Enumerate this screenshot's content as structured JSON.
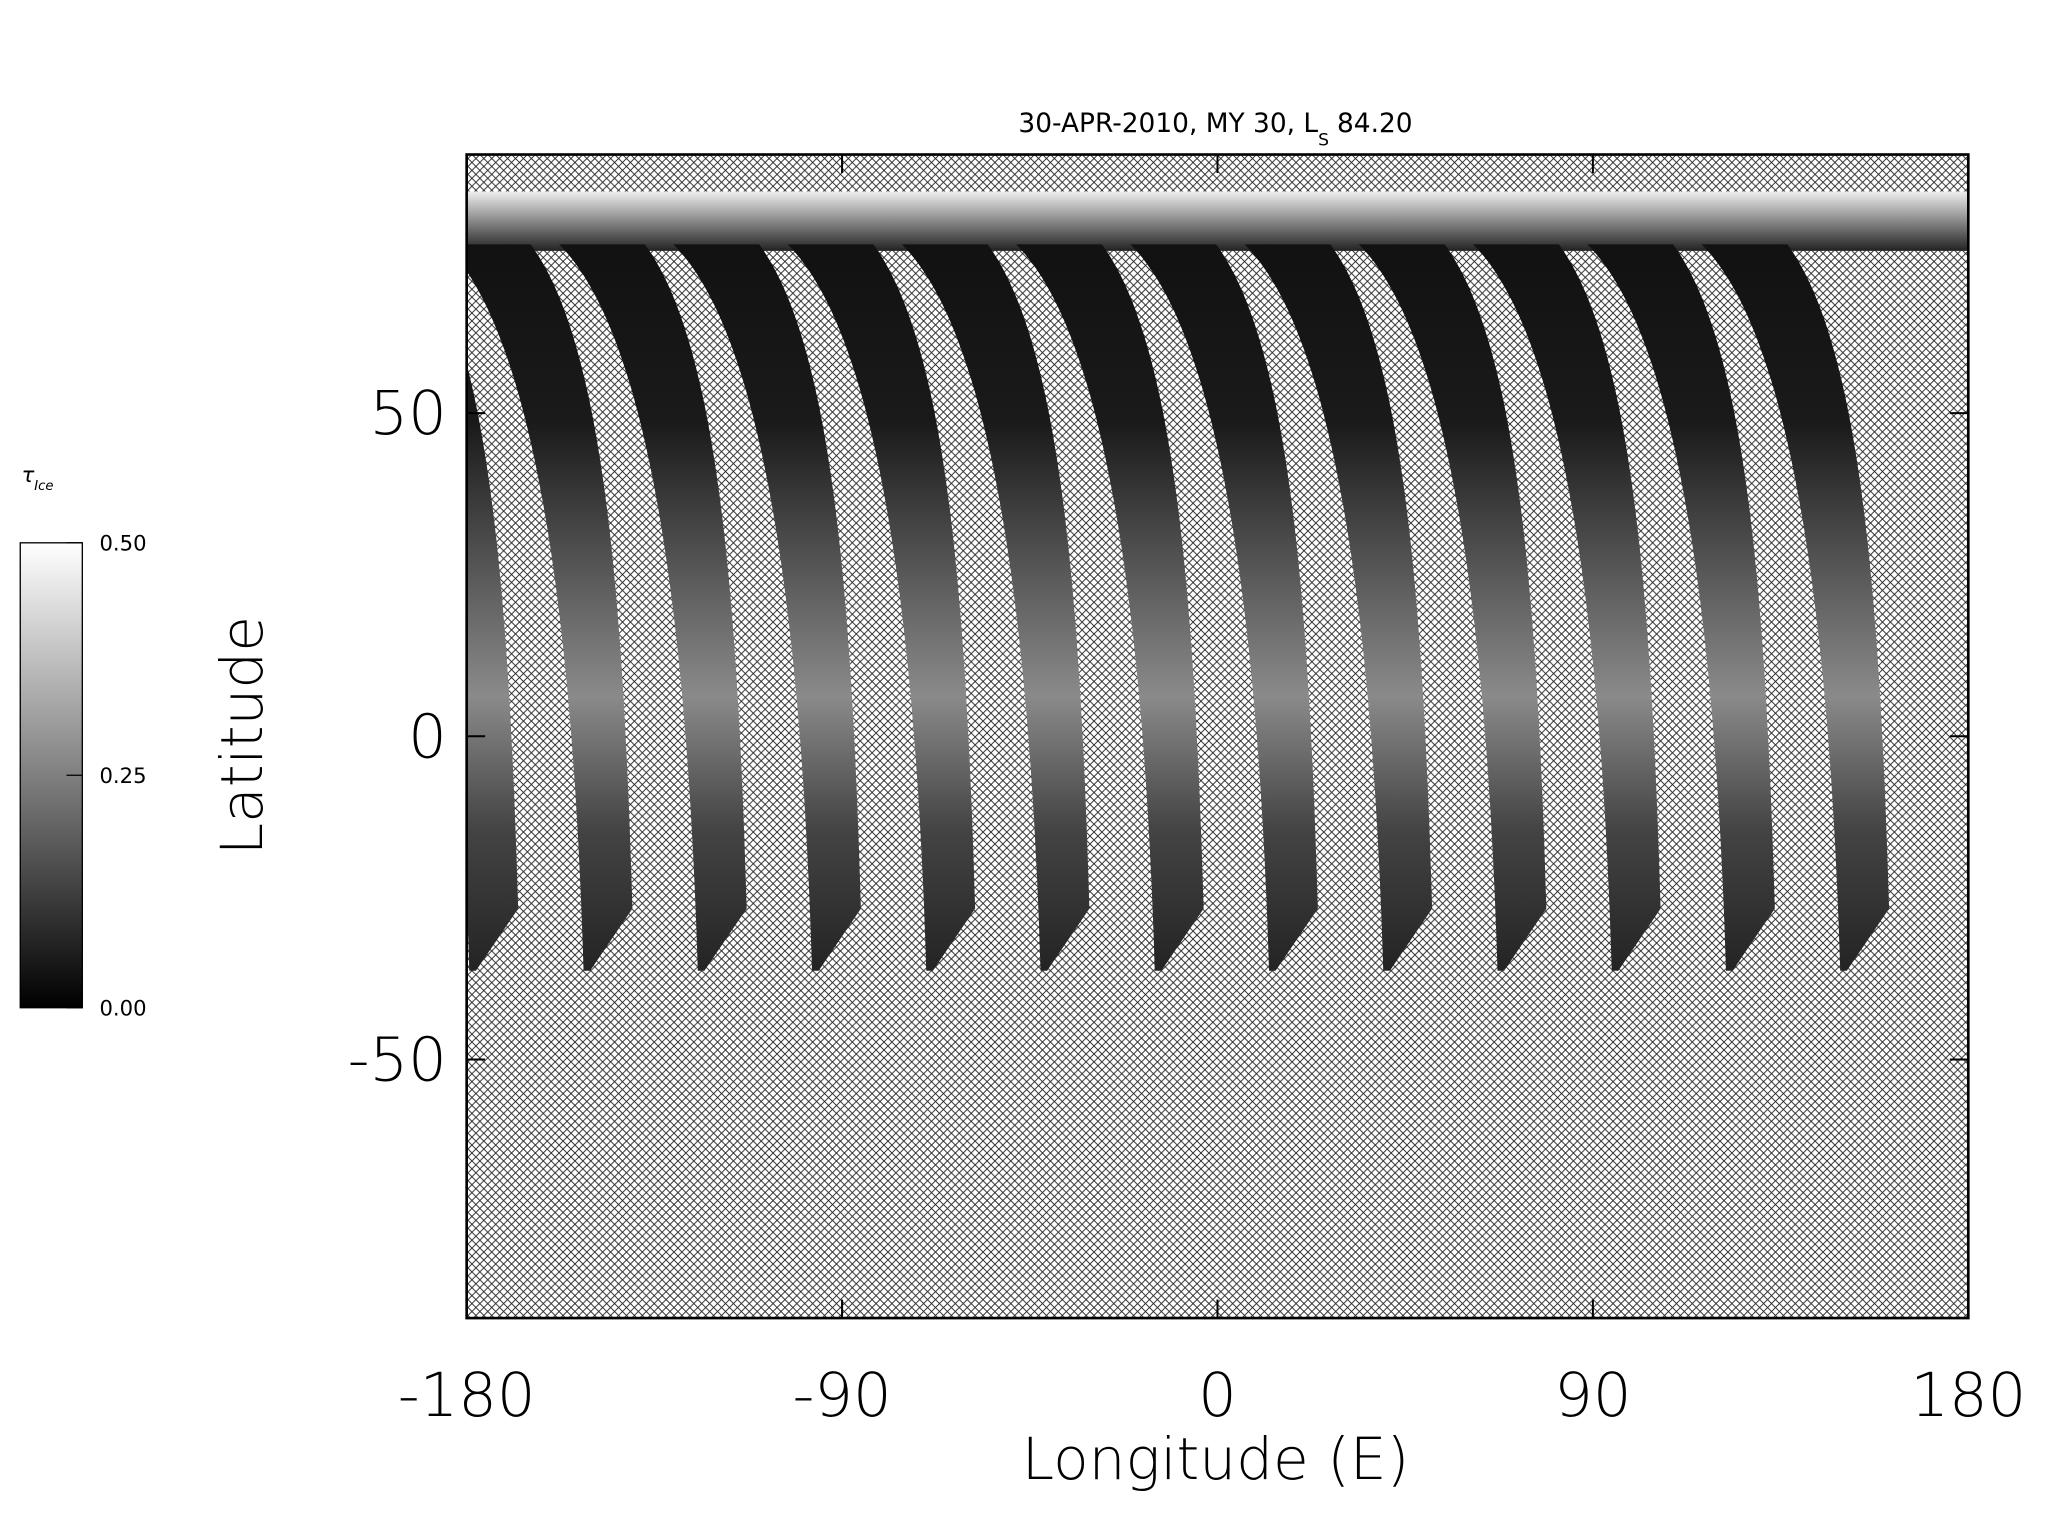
{
  "chart_data": {
    "type": "swath-map",
    "title": "30-APR-2010, MY 30,  L",
    "title_subscript": "S",
    "title_suffix": "84.20",
    "xlabel": "Longitude (E)",
    "ylabel": "Latitude",
    "xlim": [
      -180,
      180
    ],
    "ylim": [
      -90,
      90
    ],
    "xticks": [
      -180,
      -90,
      0,
      90,
      180
    ],
    "yticks": [
      -50,
      0,
      50
    ],
    "colorbar": {
      "label": "τ",
      "label_subscript": "Ice",
      "lim": [
        0,
        0.5
      ],
      "ticks": [
        {
          "value": 0,
          "label": "0.00"
        },
        {
          "value": 0.25,
          "label": "0.25"
        },
        {
          "value": 0.5,
          "label": "0.50"
        }
      ],
      "colors": [
        "#000000",
        "#ffffff"
      ]
    }
  }
}
